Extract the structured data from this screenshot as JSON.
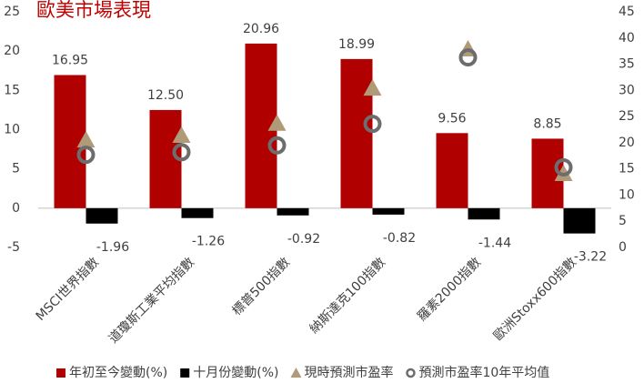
{
  "chart_data": {
    "type": "bar",
    "title": "歐美市場表現",
    "categories": [
      "MSCI世界指數",
      "道瓊斯工業平均指數",
      "標普500指數",
      "納斯達克100指數",
      "羅素2000指數",
      "歐洲Stoxx600指數"
    ],
    "series": [
      {
        "name": "年初至今變動(%)",
        "type": "bar",
        "color": "#b00000",
        "values": [
          16.95,
          12.5,
          20.96,
          18.99,
          9.56,
          8.85
        ],
        "value_labels": [
          "16.95",
          "12.50",
          "20.96",
          "18.99",
          "9.56",
          "8.85"
        ]
      },
      {
        "name": "十月份變動(%)",
        "type": "bar",
        "color": "#000000",
        "values": [
          -1.96,
          -1.26,
          -0.92,
          -0.82,
          -1.44,
          -3.22
        ]
      },
      {
        "name": "現時預測市盈率",
        "type": "scatter",
        "marker": "triangle",
        "axis": "y2",
        "color": "#b09a78",
        "values": [
          20.3,
          21.2,
          23.5,
          30.2,
          37.7,
          13.9
        ]
      },
      {
        "name": "預測市盈率10年平均值",
        "type": "scatter",
        "marker": "circle",
        "axis": "y2",
        "color": "#6d6d6d",
        "values": [
          17.7,
          18.2,
          19.5,
          23.6,
          36.3,
          15.3
        ]
      }
    ],
    "ylim": [
      -5,
      25
    ],
    "yticks": [
      -5,
      0,
      5,
      10,
      15,
      20,
      25
    ],
    "y2lim": [
      0,
      45
    ],
    "y2ticks": [
      0,
      5,
      10,
      15,
      20,
      25,
      30,
      35,
      40,
      45
    ]
  }
}
